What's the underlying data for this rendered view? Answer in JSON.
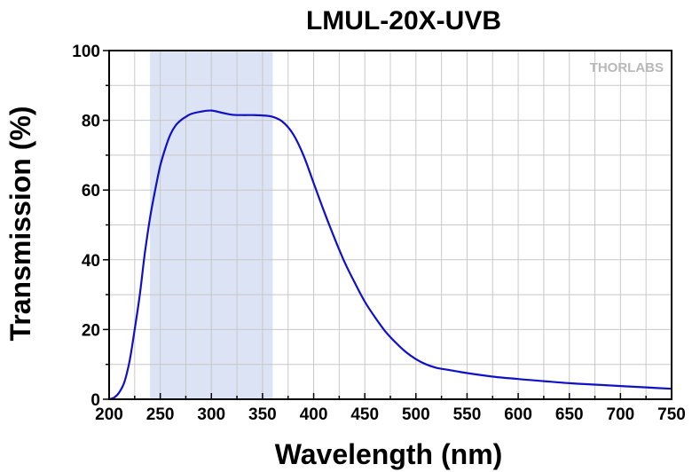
{
  "chart_data": {
    "type": "line",
    "title": "LMUL-20X-UVB",
    "xlabel": "Wavelength (nm)",
    "ylabel": "Transmission (%)",
    "xlim": [
      200,
      750
    ],
    "ylim": [
      0,
      100
    ],
    "x_ticks": [
      200,
      250,
      300,
      350,
      400,
      450,
      500,
      550,
      600,
      650,
      700,
      750
    ],
    "y_ticks": [
      0,
      20,
      40,
      60,
      80,
      100
    ],
    "x_minor_step": 25,
    "y_minor_step": 10,
    "grid": true,
    "highlight_band": {
      "x_range": [
        240,
        360
      ],
      "color": "#dbe3f4"
    },
    "series": [
      {
        "color": "#1010c8",
        "x": [
          200,
          205,
          210,
          215,
          220,
          225,
          230,
          235,
          240,
          245,
          250,
          255,
          260,
          265,
          270,
          275,
          280,
          290,
          300,
          310,
          320,
          330,
          340,
          350,
          360,
          370,
          380,
          390,
          400,
          410,
          420,
          430,
          440,
          450,
          460,
          470,
          480,
          490,
          500,
          510,
          520,
          530,
          540,
          550,
          575,
          600,
          625,
          650,
          675,
          700,
          725,
          750
        ],
        "y": [
          0,
          0.5,
          2,
          5,
          11,
          20,
          30,
          42,
          52,
          60,
          67,
          72,
          76,
          78.5,
          80,
          81,
          81.8,
          82.5,
          82.8,
          82.2,
          81.6,
          81.5,
          81.5,
          81.4,
          81,
          79.5,
          76,
          70,
          62,
          54,
          46.5,
          39.5,
          33.5,
          28,
          23.5,
          19.5,
          16.3,
          13.6,
          11.5,
          10,
          9,
          8.5,
          8,
          7.5,
          6.5,
          5.8,
          5.2,
          4.6,
          4.2,
          3.8,
          3.4,
          3
        ]
      }
    ]
  },
  "logo": {
    "text": "THORLABS"
  }
}
